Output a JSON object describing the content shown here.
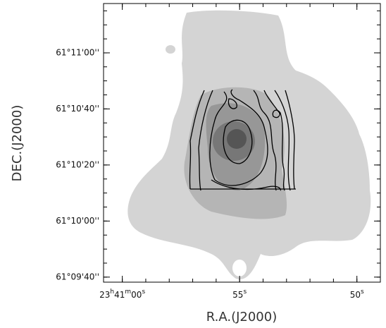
{
  "chart_data": {
    "type": "contour-map",
    "xlabel": "R.A.(J2000)",
    "ylabel": "DEC.(J2000)",
    "xlim": [
      85260.8,
      85249.0
    ],
    "ylim": [
      578.2,
      677.6
    ],
    "xticks": [
      {
        "value": 85260,
        "label": "23h41m00s"
      },
      {
        "value": 85255,
        "label": "55s"
      },
      {
        "value": 85250,
        "label": "50s"
      }
    ],
    "yticks": [
      {
        "value": 580,
        "label": "61°09'40''"
      },
      {
        "value": 600,
        "label": "61°10'00''"
      },
      {
        "value": 620,
        "label": "61°10'20''"
      },
      {
        "value": 640,
        "label": "61°10'40''"
      },
      {
        "value": 660,
        "label": "61°11'00''"
      }
    ]
  }
}
